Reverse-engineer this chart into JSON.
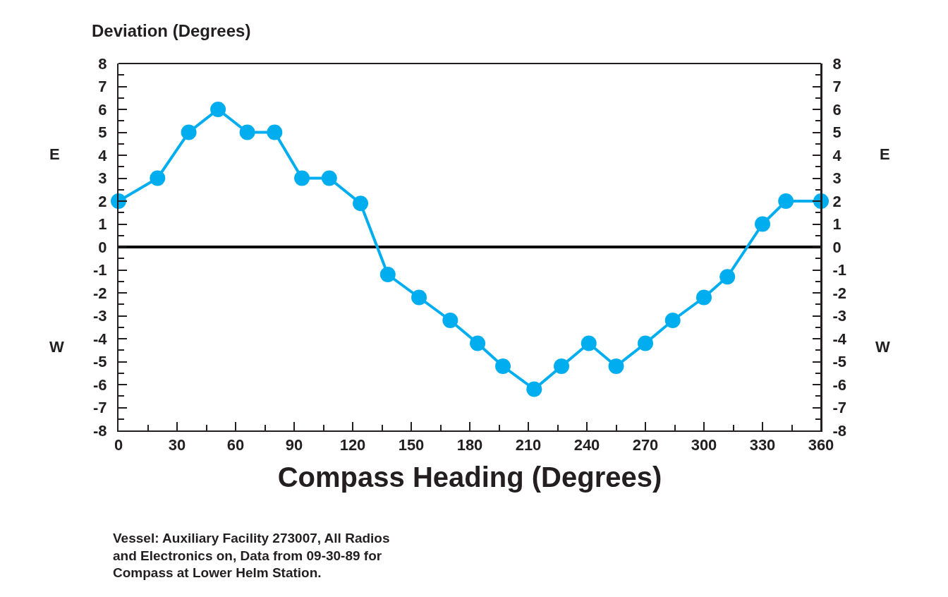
{
  "chart_data": {
    "type": "line",
    "ylabel": "Deviation (Degrees)",
    "xlabel": "Compass Heading (Degrees)",
    "x": [
      0,
      20,
      36,
      51,
      66,
      80,
      94,
      108,
      124,
      138,
      154,
      170,
      184,
      197,
      213,
      227,
      241,
      255,
      270,
      284,
      300,
      312,
      330,
      342,
      360
    ],
    "series": [
      {
        "color": "#00aeef",
        "values": [
          2,
          3,
          5,
          6,
          5,
          5,
          3,
          3,
          1.9,
          -1.2,
          -2.2,
          -3.2,
          -4.2,
          -5.2,
          -6.2,
          -5.2,
          -4.2,
          -5.2,
          -4.2,
          -3.2,
          -2.2,
          -1.3,
          1,
          2,
          2
        ]
      }
    ],
    "marker": "circle",
    "line_style": "solid",
    "xlim": [
      0,
      360
    ],
    "xticks": [
      0,
      {
        "value": 15,
        "label": null
      },
      30,
      {
        "value": 45,
        "label": null
      },
      60,
      {
        "value": 75,
        "label": null
      },
      90,
      {
        "value": 105,
        "label": null
      },
      120,
      {
        "value": 135,
        "label": null
      },
      150,
      {
        "value": 165,
        "label": null
      },
      180,
      {
        "value": 195,
        "label": null
      },
      210,
      {
        "value": 225,
        "label": null
      },
      240,
      {
        "value": 255,
        "label": null
      },
      270,
      {
        "value": 285,
        "label": null
      },
      300,
      {
        "value": 315,
        "label": null
      },
      330,
      {
        "value": 345,
        "label": null
      },
      360
    ],
    "ylim": [
      -8,
      8
    ],
    "yticks": [
      -8,
      {
        "value": -7.5,
        "label": null
      },
      -7,
      {
        "value": -6.5,
        "label": null
      },
      -6,
      {
        "value": -5.5,
        "label": null
      },
      -5,
      {
        "value": -4.5,
        "label": null
      },
      -4,
      {
        "value": -3.5,
        "label": null
      },
      -3,
      {
        "value": -2.5,
        "label": null
      },
      -2,
      {
        "value": -1.5,
        "label": null
      },
      -1,
      {
        "value": -0.5,
        "label": null
      },
      0,
      {
        "value": 0.5,
        "label": null
      },
      1,
      {
        "value": 1.5,
        "label": null
      },
      2,
      {
        "value": 2.5,
        "label": null
      },
      3,
      {
        "value": 3.5,
        "label": null
      },
      4,
      {
        "value": 4.5,
        "label": null
      },
      5,
      {
        "value": 5.5,
        "label": null
      },
      6,
      {
        "value": 6.5,
        "label": null
      },
      7,
      {
        "value": 7.5,
        "label": null
      },
      8
    ],
    "y2lim": [
      -8,
      8
    ],
    "y2ticks": [
      -8,
      {
        "value": -7.5,
        "label": null
      },
      -7,
      {
        "value": -6.5,
        "label": null
      },
      -6,
      {
        "value": -5.5,
        "label": null
      },
      -5,
      {
        "value": -4.5,
        "label": null
      },
      -4,
      {
        "value": -3.5,
        "label": null
      },
      -3,
      {
        "value": -2.5,
        "label": null
      },
      -2,
      {
        "value": -1.5,
        "label": null
      },
      -1,
      {
        "value": -0.5,
        "label": null
      },
      0,
      {
        "value": 0.5,
        "label": null
      },
      1,
      {
        "value": 1.5,
        "label": null
      },
      2,
      {
        "value": 2.5,
        "label": null
      },
      3,
      {
        "value": 3.5,
        "label": null
      },
      4,
      {
        "value": 4.5,
        "label": null
      },
      5,
      {
        "value": 5.5,
        "label": null
      },
      6,
      {
        "value": 6.5,
        "label": null
      },
      7,
      {
        "value": 7.5,
        "label": null
      },
      8
    ],
    "ref_lines": [
      {
        "axis": "y",
        "value": 0,
        "color": "#000000",
        "line_style": "solid"
      }
    ],
    "grid": false,
    "annotations": [
      "E",
      "W",
      "E",
      "W",
      "Vessel: Auxiliary Facility 273007, All Radios\nand Electronics on, Data from 09-30-89 for\nCompass at Lower Helm Station."
    ]
  }
}
